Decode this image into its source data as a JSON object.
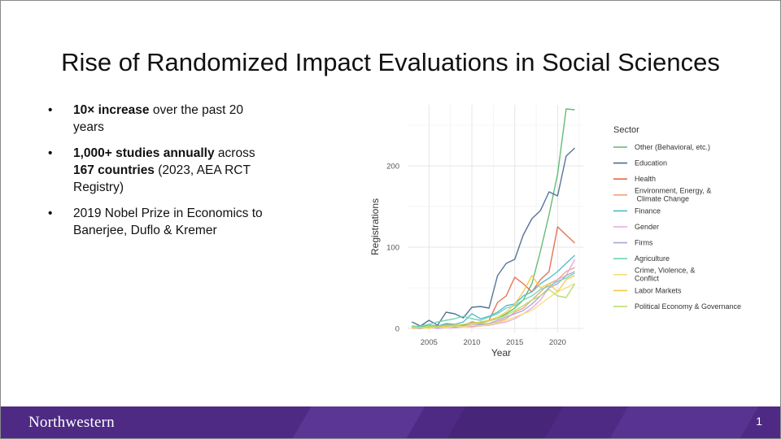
{
  "slide": {
    "title": "Rise of Randomized Impact Evaluations in Social Sciences",
    "page_number": "1",
    "brand": "Northwestern"
  },
  "bullets": [
    {
      "bold1": "10× increase",
      "text1": " over the past 20 years"
    },
    {
      "bold1": "1,000+ studies annually",
      "text1": " across ",
      "bold2": "167 countries",
      "text2": " (2023, AEA RCT Registry)"
    },
    {
      "text1": "2019 Nobel Prize in Economics to Banerjee, Duflo & Kremer"
    }
  ],
  "bullet_glyph": "•",
  "colors": {
    "footer": "#4e2a84",
    "footer_shape": "#5b3694"
  },
  "chart_data": {
    "type": "line",
    "xlabel": "Year",
    "ylabel": "Registrations",
    "xlim": [
      2002.5,
      2023
    ],
    "ylim": [
      -5,
      275
    ],
    "xticks": [
      2005,
      2010,
      2015,
      2020
    ],
    "yticks": [
      0,
      100,
      200
    ],
    "grid": true,
    "legend_title": "Sector",
    "legend_position": "right",
    "x": [
      2003,
      2004,
      2005,
      2006,
      2007,
      2008,
      2009,
      2010,
      2011,
      2012,
      2013,
      2014,
      2015,
      2016,
      2017,
      2018,
      2019,
      2020,
      2021,
      2022
    ],
    "series": [
      {
        "name": "Other (Behavioral, etc.)",
        "color": "#5cb870",
        "values": [
          2,
          1,
          2,
          1,
          3,
          2,
          4,
          6,
          7,
          10,
          12,
          18,
          25,
          35,
          55,
          95,
          140,
          190,
          270,
          269
        ]
      },
      {
        "name": "Education",
        "color": "#4d6d8f",
        "values": [
          8,
          3,
          10,
          4,
          20,
          18,
          13,
          26,
          27,
          25,
          65,
          80,
          85,
          115,
          135,
          145,
          168,
          163,
          212,
          222
        ]
      },
      {
        "name": "Health",
        "color": "#e56b4c",
        "values": [
          1,
          2,
          3,
          2,
          5,
          3,
          4,
          8,
          6,
          10,
          32,
          40,
          63,
          55,
          45,
          60,
          70,
          125,
          115,
          105
        ]
      },
      {
        "name": "Environment, Energy, & Climate Change",
        "color": "#f2a07a",
        "values": [
          0,
          1,
          0,
          2,
          1,
          2,
          3,
          2,
          4,
          5,
          8,
          12,
          20,
          25,
          35,
          45,
          55,
          60,
          70,
          75
        ]
      },
      {
        "name": "Finance",
        "color": "#4fb8c9",
        "values": [
          3,
          2,
          4,
          3,
          6,
          5,
          8,
          18,
          12,
          15,
          20,
          28,
          30,
          40,
          45,
          55,
          62,
          70,
          80,
          90
        ]
      },
      {
        "name": "Gender",
        "color": "#e8a8dc",
        "values": [
          0,
          0,
          1,
          0,
          1,
          1,
          2,
          2,
          3,
          4,
          6,
          8,
          12,
          18,
          25,
          35,
          50,
          60,
          65,
          85
        ]
      },
      {
        "name": "Firms",
        "color": "#a3a7d9",
        "values": [
          1,
          0,
          2,
          1,
          3,
          2,
          3,
          4,
          5,
          6,
          10,
          14,
          18,
          22,
          30,
          40,
          50,
          55,
          65,
          70
        ]
      },
      {
        "name": "Agriculture",
        "color": "#6fd4b1",
        "values": [
          2,
          3,
          5,
          8,
          10,
          12,
          15,
          12,
          10,
          14,
          18,
          25,
          28,
          35,
          40,
          48,
          52,
          58,
          62,
          68
        ]
      },
      {
        "name": "Crime, Violence, & Conflict",
        "color": "#f5de7a",
        "values": [
          0,
          1,
          0,
          2,
          1,
          3,
          2,
          4,
          3,
          5,
          7,
          10,
          14,
          18,
          22,
          30,
          38,
          45,
          50,
          55
        ]
      },
      {
        "name": "Labor Markets",
        "color": "#f2c94c",
        "values": [
          1,
          1,
          2,
          2,
          3,
          4,
          5,
          6,
          8,
          10,
          14,
          20,
          30,
          45,
          65,
          50,
          55,
          45,
          60,
          65
        ]
      },
      {
        "name": "Political Economy & Governance",
        "color": "#b5dc6a",
        "values": [
          2,
          1,
          3,
          2,
          4,
          3,
          5,
          7,
          6,
          9,
          12,
          16,
          22,
          28,
          35,
          40,
          48,
          40,
          38,
          55
        ]
      }
    ]
  }
}
